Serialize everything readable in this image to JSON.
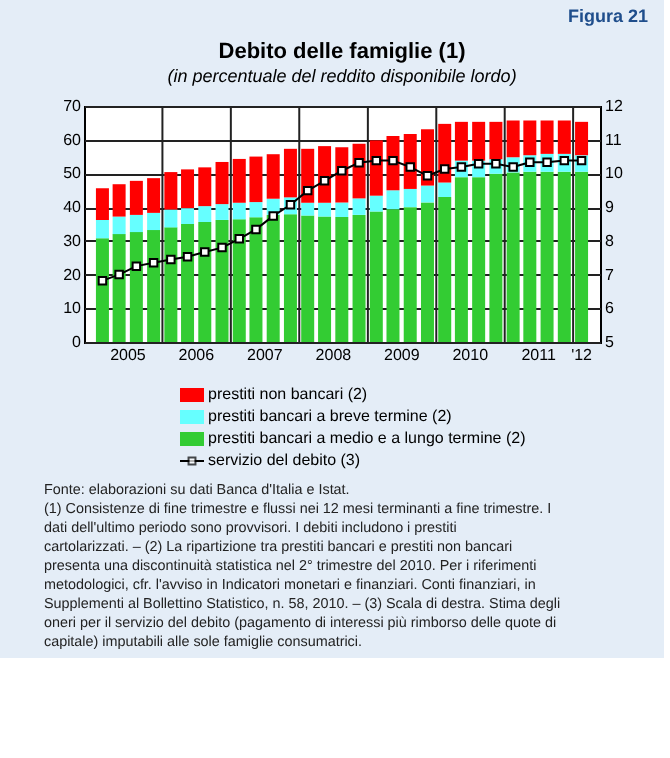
{
  "chart_data": {
    "type": "bar",
    "title": "Debito delle famiglie (1)",
    "subtitle": "(in percentuale del reddito disponibile lordo)",
    "x": [
      "2005-02-15",
      "2005-05-15",
      "2005-08-15",
      "2005-11-15",
      "2006-02-15",
      "2006-05-15",
      "2006-08-15",
      "2006-11-15",
      "2007-02-15",
      "2007-05-15",
      "2007-08-15",
      "2007-11-15",
      "2008-02-15",
      "2008-05-15",
      "2008-08-15",
      "2008-11-15",
      "2009-02-15",
      "2009-05-15",
      "2009-08-15",
      "2009-11-15",
      "2010-02-15",
      "2010-05-15",
      "2010-08-15",
      "2010-11-15",
      "2011-02-15",
      "2011-05-15",
      "2011-08-15",
      "2011-11-15",
      "2012-02-15"
    ],
    "stacked": true,
    "series": [
      {
        "name": "prestiti bancari a medio e a lungo termine (2)",
        "color": "#33cc33",
        "values": [
          30.8,
          32,
          32.6,
          33.2,
          34,
          35,
          35.6,
          36.2,
          36.4,
          37,
          37.7,
          37.9,
          37.5,
          37.2,
          37.1,
          37.7,
          38.7,
          39.4,
          40,
          41.4,
          43,
          48.9,
          48.9,
          49.9,
          50.3,
          50.5,
          50.5,
          50.5,
          50.5
        ]
      },
      {
        "name": "prestiti bancari a breve termine (2)",
        "color": "#66ffff",
        "values": [
          5.4,
          5.2,
          5.1,
          5.1,
          5.3,
          4.7,
          4.7,
          4.7,
          4.9,
          4.5,
          4.8,
          5.0,
          3.8,
          4.1,
          4.3,
          4.9,
          4.7,
          5.6,
          5.4,
          5.0,
          4.3,
          4.9,
          4.9,
          4.3,
          4.5,
          4.9,
          5.3,
          5.3,
          4.9
        ]
      },
      {
        "name": "prestiti non bancari (2)",
        "color": "#ff0000",
        "values": [
          9.4,
          9.6,
          10.1,
          10.3,
          11.1,
          11.5,
          11.5,
          12.5,
          13.0,
          13.5,
          13.2,
          14.4,
          16.0,
          16.8,
          16.4,
          16.2,
          16.4,
          16.1,
          16.3,
          16.7,
          17.4,
          11.5,
          11.5,
          11.1,
          10.9,
          10.3,
          9.9,
          9.9,
          9.9
        ]
      },
      {
        "name": "servizio del debito (3)",
        "type": "line",
        "axis": "y2",
        "marker": "square",
        "color": "#000000",
        "values": [
          6.82,
          7.0,
          7.25,
          7.35,
          7.45,
          7.53,
          7.67,
          7.8,
          8.06,
          8.34,
          8.74,
          9.07,
          9.49,
          9.78,
          10.08,
          10.32,
          10.38,
          10.38,
          10.19,
          9.93,
          10.13,
          10.19,
          10.29,
          10.29,
          10.19,
          10.33,
          10.33,
          10.38,
          10.38
        ]
      }
    ],
    "xlim": [
      "2005-01-01",
      "2012-03-31"
    ],
    "xticks": [
      {
        "value": "2005-07-01",
        "label": "2005"
      },
      {
        "value": "2006-01-01",
        "label": null
      },
      {
        "value": "2006-07-01",
        "label": "2006"
      },
      {
        "value": "2007-01-01",
        "label": null
      },
      {
        "value": "2007-07-01",
        "label": "2007"
      },
      {
        "value": "2008-01-01",
        "label": null
      },
      {
        "value": "2008-07-01",
        "label": "2008"
      },
      {
        "value": "2009-01-01",
        "label": null
      },
      {
        "value": "2009-07-01",
        "label": "2009"
      },
      {
        "value": "2010-01-01",
        "label": null
      },
      {
        "value": "2010-07-01",
        "label": "2010"
      },
      {
        "value": "2011-01-01",
        "label": null
      },
      {
        "value": "2011-07-01",
        "label": "2011"
      },
      {
        "value": "2012-01-01",
        "label": null
      },
      {
        "value": "2012-02-15",
        "label": "'12"
      }
    ],
    "ylim": [
      0,
      70
    ],
    "yticks": [
      0,
      10,
      20,
      30,
      40,
      50,
      60,
      70
    ],
    "y2lim": [
      5,
      12
    ],
    "y2ticks": [
      5,
      6,
      7,
      8,
      9,
      10,
      11,
      12
    ],
    "grid": true,
    "legend": "bottom",
    "annotations": [
      "Figura 21",
      "Fonte: elaborazioni su dati Banca d'Italia e Istat.",
      "(1) Consistenze di fine trimestre e flussi nei 12 mesi terminanti a fine trimestre. I dati dell'ultimo periodo sono provvisori. I debiti includono i prestiti cartolarizzati. – (2) La ripartizione tra prestiti bancari e prestiti non bancari presenta una discontinuità statistica nel 2° trimestre del 2010. Per i riferimenti metodologici, cfr. l'avviso in Indicatori monetari e finanziari. Conti finanziari, in Supplementi al Bollettino Statistico, n. 58, 2010. – (3) Scala di destra. Stima degli oneri per il servizio del debito (pagamento di interessi più rimborso delle quote di capitale) imputabili alle sole famiglie consumatrici."
    ]
  }
}
